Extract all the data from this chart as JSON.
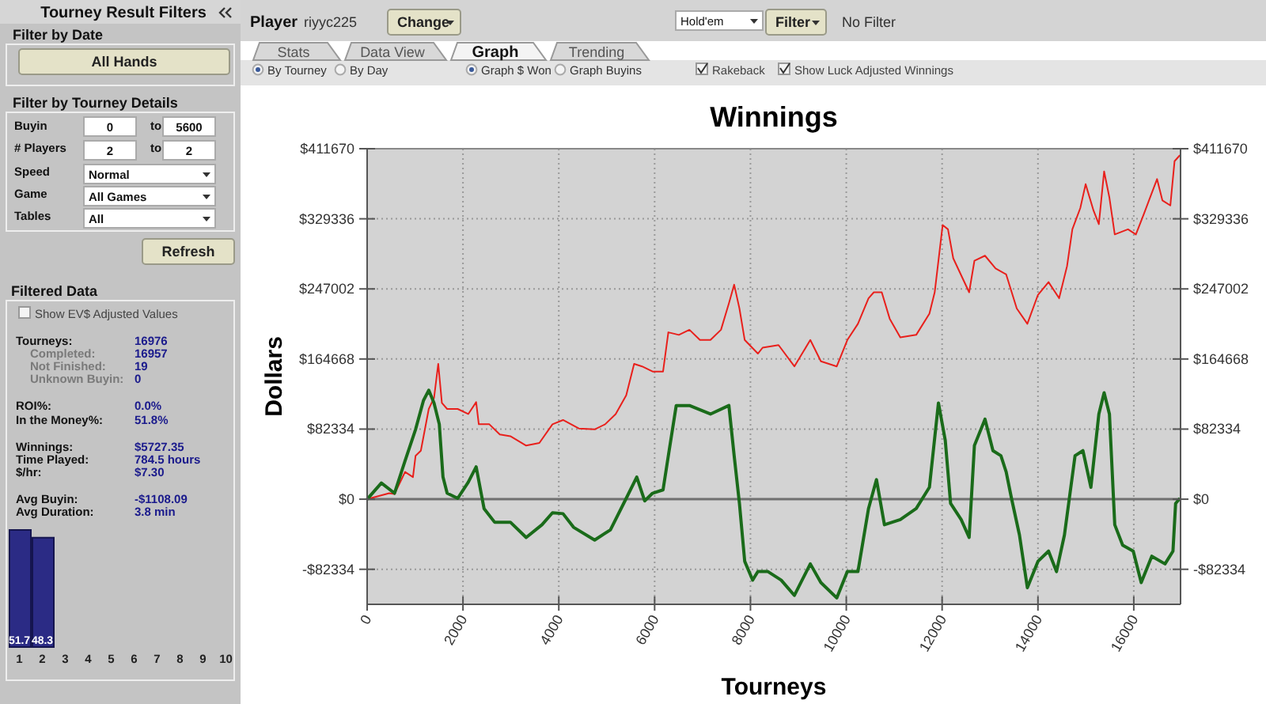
{
  "chart_data": [
    {
      "type": "other",
      "title": "Tourney Result Filters",
      "annotations": [
        "Filter by Date",
        "All Hands",
        "Filter by Tourney Details",
        "Buyin",
        "0",
        "to",
        "5600",
        "# Players",
        "2",
        "to",
        "2",
        "Speed",
        "Normal",
        "Game",
        "All Games",
        "Tables",
        "All",
        "Refresh",
        "Filtered Data",
        "Show EV$ Adjusted Values",
        "Tourneys:",
        "16976",
        "Completed:",
        "16957",
        "Not Finished:",
        "19",
        "Unknown Buyin:",
        "0",
        "ROI%:",
        "0.0%",
        "In the Money%:",
        "51.8%",
        "Winnings:",
        "$5727.35",
        "Time Played:",
        "784.5 hours",
        "$/hr:",
        "$7.30",
        "Avg Buyin:",
        "-$1108.09",
        "Avg Duration:",
        "3.8 min",
        "Player",
        "riyyc225",
        "Change",
        "Hold'em",
        "Filter",
        "No Filter",
        "Stats",
        "Data View",
        "Graph",
        "Trending",
        "By Tourney",
        "By Day",
        "Graph $ Won",
        "Graph Buyins",
        "Rakeback",
        "Show Luck Adjusted Winnings"
      ]
    },
    {
      "type": "line",
      "title": "Winnings",
      "xlabel": "Tourneys",
      "ylabel": "Dollars",
      "xlim": [
        0,
        16976
      ],
      "xticks": [
        0,
        2000,
        4000,
        6000,
        8000,
        10000,
        12000,
        14000,
        16000
      ],
      "ylim": [
        -123501,
        411670
      ],
      "yticks": [
        {
          "value": -82334,
          "label": "-$82334"
        },
        {
          "value": 0,
          "label": "$0"
        },
        {
          "value": 82334,
          "label": "$82334"
        },
        {
          "value": 164668,
          "label": "$164668"
        },
        {
          "value": 247002,
          "label": "$247002"
        },
        {
          "value": 329336,
          "label": "$329336"
        },
        {
          "value": 411670,
          "label": "$411670"
        }
      ],
      "y2lim": [
        -123501,
        411670
      ],
      "y2ticks": [
        {
          "value": -82334,
          "label": "-$82334"
        },
        {
          "value": 0,
          "label": "$0"
        },
        {
          "value": 82334,
          "label": "$82334"
        },
        {
          "value": 164668,
          "label": "$164668"
        },
        {
          "value": 247002,
          "label": "$247002"
        },
        {
          "value": 329336,
          "label": "$329336"
        },
        {
          "value": 411670,
          "label": "$411670"
        }
      ],
      "grid": true,
      "ref_lines": [
        {
          "axis": "y",
          "value": 0,
          "color": "#707070"
        }
      ],
      "series": [
        {
          "color": "#e8201c",
          "x": [
            0,
            462,
            571,
            791,
            956,
            1011,
            1121,
            1286,
            1396,
            1484,
            1560,
            1670,
            1890,
            2110,
            2275,
            2330,
            2550,
            2769,
            2989,
            3319,
            3594,
            3868,
            4088,
            4418,
            4748,
            4967,
            5187,
            5407,
            5572,
            5737,
            5957,
            6176,
            6286,
            6506,
            6726,
            6945,
            7165,
            7385,
            7550,
            7660,
            7770,
            7880,
            8155,
            8254,
            8586,
            8917,
            9249,
            9470,
            9801,
            10022,
            10243,
            10464,
            10575,
            10740,
            10906,
            11127,
            11459,
            11735,
            11845,
            12011,
            12122,
            12232,
            12564,
            12674,
            12895,
            13116,
            13337,
            13558,
            13779,
            14000,
            14221,
            14442,
            14608,
            14718,
            14884,
            14995,
            15160,
            15271,
            15381,
            15492,
            15603,
            15879,
            16044,
            16210,
            16486,
            16597,
            16763,
            16851,
            16962
          ],
          "values": [
            0,
            7000,
            6000,
            32000,
            26000,
            51000,
            57000,
            106000,
            119000,
            159000,
            113000,
            106000,
            106000,
            100000,
            114000,
            88000,
            88000,
            76000,
            74000,
            63000,
            66000,
            88000,
            93000,
            83000,
            82000,
            88000,
            100000,
            122000,
            159000,
            156000,
            150000,
            150000,
            196000,
            193000,
            199000,
            187000,
            187000,
            199000,
            230000,
            252000,
            224000,
            187000,
            171000,
            178000,
            181000,
            156000,
            187000,
            162000,
            156000,
            187000,
            206000,
            236000,
            243000,
            243000,
            212000,
            190000,
            193000,
            218000,
            243000,
            322000,
            317000,
            283000,
            243000,
            280000,
            286000,
            271000,
            264000,
            224000,
            206000,
            240000,
            255000,
            236000,
            274000,
            317000,
            342000,
            370000,
            339000,
            323000,
            385000,
            354000,
            311000,
            317000,
            311000,
            335000,
            376000,
            351000,
            345000,
            397000,
            404000
          ]
        },
        {
          "color": "#1a6b1a",
          "x": [
            0,
            297,
            571,
            791,
            1011,
            1176,
            1286,
            1396,
            1506,
            1583,
            1670,
            1890,
            2110,
            2275,
            2440,
            2660,
            2989,
            3319,
            3649,
            3868,
            4088,
            4308,
            4748,
            5077,
            5407,
            5627,
            5792,
            5957,
            6176,
            6286,
            6451,
            6726,
            7165,
            7550,
            7660,
            7770,
            7880,
            8045,
            8155,
            8365,
            8641,
            8917,
            9249,
            9470,
            9801,
            10022,
            10243,
            10464,
            10630,
            10796,
            11127,
            11459,
            11735,
            11923,
            12066,
            12177,
            12398,
            12564,
            12674,
            12895,
            13061,
            13227,
            13337,
            13448,
            13614,
            13779,
            14000,
            14221,
            14387,
            14553,
            14774,
            14939,
            15105,
            15271,
            15381,
            15492,
            15603,
            15768,
            15989,
            16155,
            16376,
            16652,
            16818,
            16873,
            16962
          ],
          "values": [
            0,
            19000,
            7000,
            45000,
            82000,
            116000,
            128000,
            113000,
            88000,
            26000,
            7000,
            1000,
            20000,
            38000,
            -11000,
            -27000,
            -27000,
            -45000,
            -30000,
            -16000,
            -17000,
            -33000,
            -48000,
            -36000,
            1000,
            26000,
            -2000,
            7000,
            11000,
            51000,
            110000,
            110000,
            100000,
            110000,
            51000,
            -5000,
            -73000,
            -95000,
            -85000,
            -85000,
            -95000,
            -113000,
            -76000,
            -98000,
            -116000,
            -85000,
            -85000,
            -11000,
            23000,
            -30000,
            -24000,
            -11000,
            14000,
            113000,
            69000,
            -5000,
            -24000,
            -45000,
            63000,
            94000,
            57000,
            51000,
            32000,
            1000,
            -42000,
            -104000,
            -73000,
            -61000,
            -85000,
            -42000,
            51000,
            57000,
            14000,
            100000,
            125000,
            100000,
            -30000,
            -54000,
            -61000,
            -98000,
            -67000,
            -76000,
            -61000,
            -5000,
            1000
          ]
        }
      ]
    },
    {
      "type": "bar",
      "categories": [
        "1",
        "2",
        "3",
        "4",
        "5",
        "6",
        "7",
        "8",
        "9",
        "10"
      ],
      "values": [
        51.7,
        48.3,
        null,
        null,
        null,
        null,
        null,
        null,
        null,
        null
      ],
      "color": "#2b2b85",
      "data_labels": true
    }
  ]
}
